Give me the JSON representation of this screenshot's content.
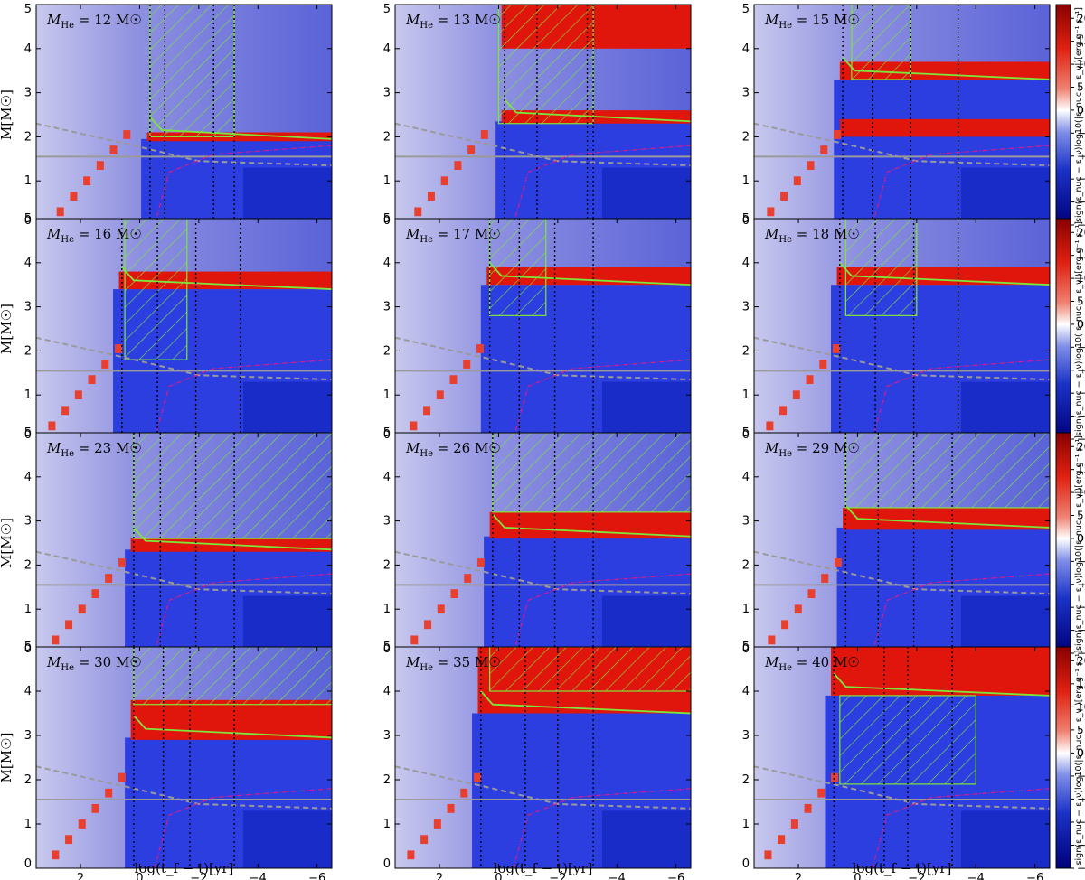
{
  "figure": {
    "xlabel": "log(t_f − t)[yr]",
    "ylabel": "M[M☉]",
    "colorbar_label": "sign(ε_nuc − ε_ν)log10(|ε_nuc − ε_ν|)[erg g⁻¹ s⁻¹]"
  },
  "chart_data": {
    "type": "heatmap",
    "layout": "4x3 grid of Kippenhahn diagrams",
    "xlabel": "log(t_f − t)[yr]",
    "ylabel": "M[M☉]",
    "xlim": [
      3.5,
      -6.5
    ],
    "ylim": [
      0,
      5
    ],
    "xticks": [
      2,
      0,
      -2,
      -4,
      -6
    ],
    "yticks": [
      0,
      1,
      2,
      3,
      4,
      5
    ],
    "colorbar": {
      "label": "sign(ε_nuc − ε_ν)log10(|ε_nuc − ε_ν|)[erg g⁻¹ s⁻¹]",
      "range": [
        -25,
        23
      ],
      "ticks": [
        20,
        15,
        10,
        5,
        0,
        -5,
        -10,
        -15,
        -20,
        -25
      ],
      "colors": {
        "negative": "#00008b",
        "zero": "#ffffff",
        "positive": "#b50000"
      }
    },
    "convective_hatch_color": "#7ee63b",
    "grey_line_color": "#9a9a9a",
    "magenta_line_color": "#d81b8a",
    "panels": [
      {
        "mass_label": "12",
        "vlines": [
          -0.35,
          -0.85,
          -2.5,
          -3.2
        ],
        "he_shell": 1.95,
        "co_core": 1.55,
        "red_bands": [
          [
            1.9,
            2.1
          ]
        ],
        "hatch_regions": [
          [
            -0.35,
            -3.2,
            2.0,
            5.0
          ]
        ]
      },
      {
        "mass_label": "13",
        "vlines": [
          -0.2,
          -1.3,
          -3.0,
          -3.2
        ],
        "he_shell": 2.35,
        "co_core": 1.55,
        "red_bands": [
          [
            2.3,
            2.6
          ],
          [
            4.0,
            5.0
          ]
        ],
        "hatch_regions": [
          [
            0.0,
            -3.2,
            2.3,
            5.0
          ]
        ]
      },
      {
        "mass_label": "15",
        "vlines": [
          0.5,
          -0.5,
          -1.8,
          -3.4
        ],
        "he_shell": 3.3,
        "co_core": 1.55,
        "red_bands": [
          [
            3.3,
            3.7
          ],
          [
            2.0,
            2.4
          ]
        ],
        "hatch_regions": [
          [
            0.2,
            -1.8,
            3.3,
            5.0
          ]
        ]
      },
      {
        "mass_label": "16",
        "vlines": [
          0.6,
          -0.6,
          -1.9,
          -3.4
        ],
        "he_shell": 3.4,
        "co_core": 1.55,
        "red_bands": [
          [
            3.4,
            3.8
          ]
        ],
        "hatch_regions": [
          [
            0.5,
            -1.6,
            1.8,
            5.0
          ]
        ]
      },
      {
        "mass_label": "17",
        "vlines": [
          0.3,
          -0.7,
          -1.9,
          -3.2
        ],
        "he_shell": 3.5,
        "co_core": 1.55,
        "red_bands": [
          [
            3.5,
            3.9
          ]
        ],
        "hatch_regions": [
          [
            0.3,
            -1.6,
            2.8,
            5.0
          ]
        ]
      },
      {
        "mass_label": "18",
        "vlines": [
          0.6,
          -0.6,
          -1.9,
          -3.4
        ],
        "he_shell": 3.5,
        "co_core": 1.55,
        "red_bands": [
          [
            3.5,
            3.9
          ]
        ],
        "hatch_regions": [
          [
            0.4,
            -2.0,
            2.8,
            5.0
          ]
        ]
      },
      {
        "mass_label": "23",
        "vlines": [
          0.2,
          -0.7,
          -1.9,
          -3.2
        ],
        "he_shell": 2.35,
        "co_core": 1.55,
        "red_bands": [
          [
            2.3,
            2.6
          ]
        ],
        "hatch_regions": [
          [
            0.2,
            -6.5,
            2.6,
            5.0
          ]
        ]
      },
      {
        "mass_label": "26",
        "vlines": [
          0.2,
          -0.7,
          -1.9,
          -3.2
        ],
        "he_shell": 2.65,
        "co_core": 1.55,
        "red_bands": [
          [
            2.6,
            3.2
          ]
        ],
        "hatch_regions": [
          [
            0.2,
            -6.5,
            3.2,
            5.0
          ]
        ]
      },
      {
        "mass_label": "29",
        "vlines": [
          0.4,
          -0.7,
          -1.9,
          -3.2
        ],
        "he_shell": 2.85,
        "co_core": 1.55,
        "red_bands": [
          [
            2.8,
            3.3
          ]
        ],
        "hatch_regions": [
          [
            0.4,
            -6.5,
            3.3,
            5.0
          ]
        ]
      },
      {
        "mass_label": "30",
        "vlines": [
          0.2,
          -0.8,
          -1.7,
          -3.2
        ],
        "he_shell": 2.95,
        "co_core": 1.55,
        "red_bands": [
          [
            2.9,
            3.8
          ]
        ],
        "hatch_regions": [
          [
            0.2,
            -6.5,
            3.7,
            5.0
          ]
        ]
      },
      {
        "mass_label": "35",
        "vlines": [
          0.6,
          -0.9,
          -2.0,
          -3.2
        ],
        "he_shell": 3.5,
        "co_core": 1.55,
        "red_bands": [
          [
            3.5,
            4.7
          ],
          [
            3.5,
            5.0
          ]
        ],
        "hatch_regions": [
          [
            0.3,
            -6.5,
            4.0,
            5.0
          ]
        ]
      },
      {
        "mass_label": "40",
        "vlines": [
          0.8,
          -0.9,
          -1.7,
          -3.2
        ],
        "he_shell": 3.9,
        "co_core": 1.55,
        "red_bands": [
          [
            3.9,
            5.0
          ]
        ],
        "hatch_regions": [
          [
            0.6,
            -4.0,
            1.9,
            3.9
          ]
        ]
      }
    ]
  }
}
